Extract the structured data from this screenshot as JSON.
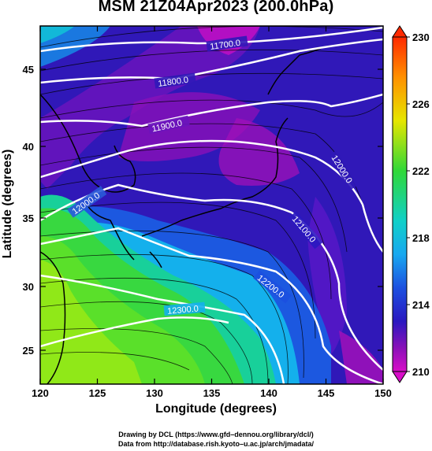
{
  "title": "MSM 21Z04Apr2023 (200.0hPa)",
  "xaxis_title": "Longitude (degrees)",
  "yaxis_title": "Latitude  (degrees)",
  "credit_line1": "Drawing by DCL (https://www.gfd–dennou.org/library/dcl/)",
  "credit_line2": "Data from http://database.rish.kyoto–u.ac.jp/arch/jmadata/",
  "x_ticks": [
    "120",
    "125",
    "130",
    "135",
    "140",
    "145",
    "150"
  ],
  "y_ticks": [
    "25",
    "30",
    "35",
    "40",
    "45"
  ],
  "colorbar": {
    "labels": [
      "230",
      "226",
      "222",
      "218",
      "214",
      "210"
    ],
    "colors": [
      "#ff2a00",
      "#ff8c00",
      "#ffd200",
      "#c8f000",
      "#4ce01a",
      "#12c85a",
      "#10d6b4",
      "#14b8f0",
      "#1c64e8",
      "#1820c8",
      "#5a14c0",
      "#a010b8",
      "#d40ec8"
    ]
  },
  "contours": {
    "labels": [
      "11700.0",
      "11800.0",
      "11900.0",
      "12000.0",
      "12100.0",
      "12200.0",
      "12300.0",
      "12000.0"
    ]
  },
  "map": {
    "lon_range": [
      120,
      150
    ],
    "lat_range": [
      22.5,
      48
    ],
    "field": "temperature",
    "overlay": "wind vectors",
    "land_color": "#000000",
    "contour_color": "#ffffff"
  }
}
